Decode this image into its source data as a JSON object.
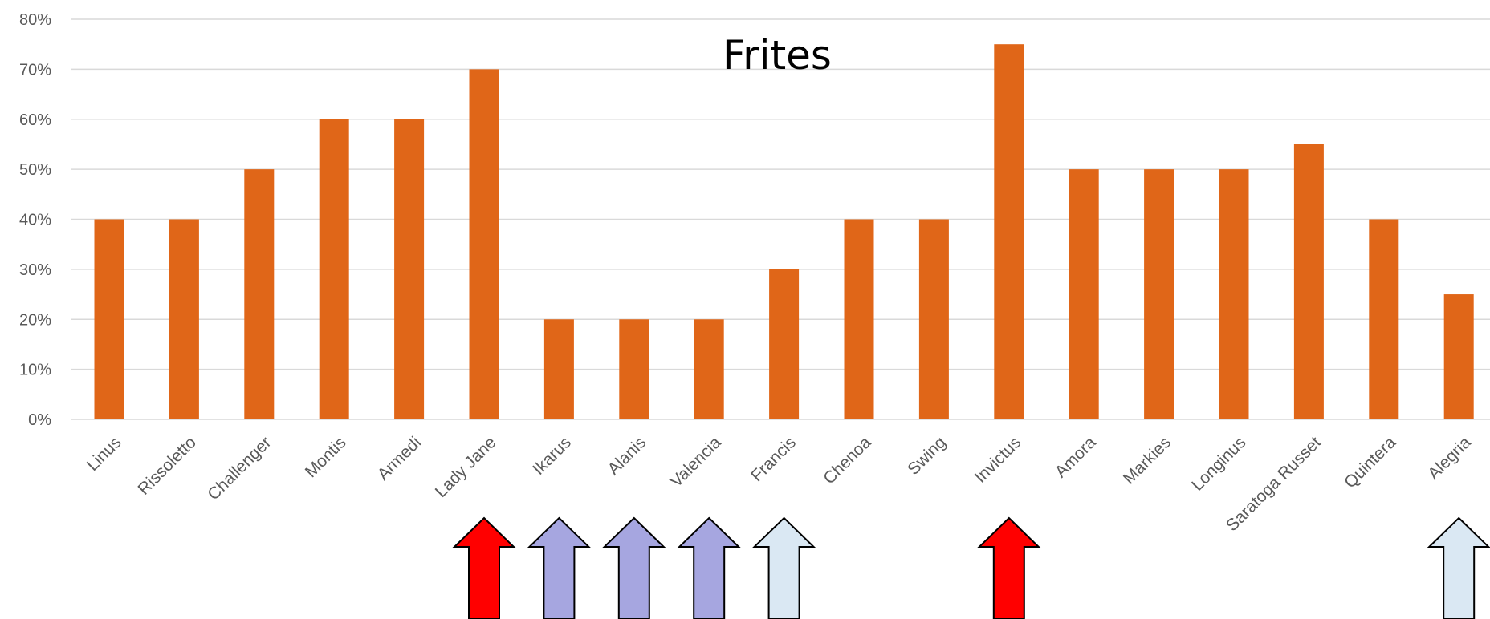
{
  "chart_data": {
    "type": "bar",
    "title": "Frites",
    "xlabel": "",
    "ylabel": "",
    "ylim": [
      0,
      80
    ],
    "yticks": [
      "0%",
      "10%",
      "20%",
      "30%",
      "40%",
      "50%",
      "60%",
      "70%",
      "80%"
    ],
    "grid": true,
    "legend": "none",
    "categories": [
      "Linus",
      "Rissoletto",
      "Challenger",
      "Montis",
      "Armedi",
      "Lady Jane",
      "Ikarus",
      "Alanis",
      "Valencia",
      "Francis",
      "Chenoa",
      "Swing",
      "Invictus",
      "Amora",
      "Markies",
      "Longinus",
      "Saratoga Russet",
      "Quintera",
      "Alegria"
    ],
    "values": [
      40,
      40,
      50,
      60,
      60,
      70,
      20,
      20,
      20,
      30,
      40,
      40,
      75,
      50,
      50,
      50,
      55,
      40,
      25
    ],
    "bar_color": "#E06618",
    "annotations": [
      {
        "type": "up-arrow",
        "category": "Lady Jane",
        "color": "#FF0000"
      },
      {
        "type": "up-arrow",
        "category": "Ikarus",
        "color": "#A6A6E0"
      },
      {
        "type": "up-arrow",
        "category": "Alanis",
        "color": "#A6A6E0"
      },
      {
        "type": "up-arrow",
        "category": "Valencia",
        "color": "#A6A6E0"
      },
      {
        "type": "up-arrow",
        "category": "Francis",
        "color": "#DAE8F3"
      },
      {
        "type": "up-arrow",
        "category": "Invictus",
        "color": "#FF0000"
      },
      {
        "type": "up-arrow",
        "category": "Alegria",
        "color": "#DAE8F3"
      }
    ]
  }
}
